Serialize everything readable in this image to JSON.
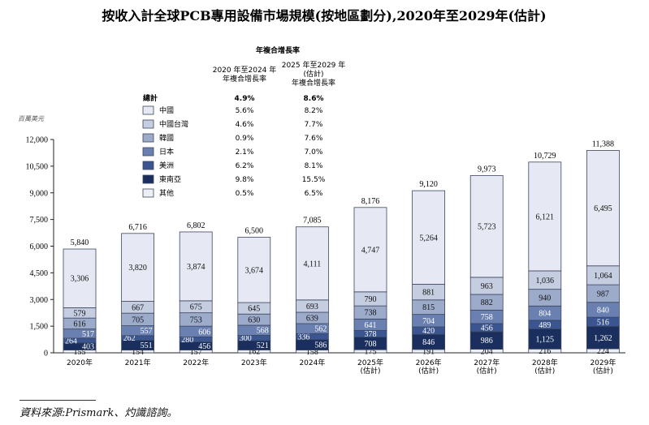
{
  "title": "按收入計全球PCB專用設備市場規模(按地區劃分),2020年至2029年(估計)",
  "unit_label": "百萬美元",
  "cagr_table": {
    "heading": "年複合增長率",
    "col1_header": [
      "2020 年至2024 年",
      "年複合增長率"
    ],
    "col2_header": [
      "2025 年至2029 年",
      "(估計)",
      "年複合增長率"
    ],
    "total_row": {
      "label": "總計",
      "cagr1": "4.9%",
      "cagr2": "8.6%"
    },
    "rows": [
      {
        "label": "中國",
        "cagr1": "5.6%",
        "cagr2": "8.2%",
        "color": "#e6e9f3"
      },
      {
        "label": "中國台灣",
        "cagr1": "4.6%",
        "cagr2": "7.7%",
        "color": "#c5cde0"
      },
      {
        "label": "韓國",
        "cagr1": "0.9%",
        "cagr2": "7.6%",
        "color": "#9dabcb"
      },
      {
        "label": "日本",
        "cagr1": "2.1%",
        "cagr2": "7.0%",
        "color": "#6a80b1"
      },
      {
        "label": "美洲",
        "cagr1": "6.2%",
        "cagr2": "8.1%",
        "color": "#3a5590"
      },
      {
        "label": "東南亞",
        "cagr1": "9.8%",
        "cagr2": "15.5%",
        "color": "#1a2f5e"
      },
      {
        "label": "其他",
        "cagr1": "0.5%",
        "cagr2": "6.5%",
        "color": "#eeeff4"
      }
    ]
  },
  "chart_data": {
    "type": "bar",
    "stacked": true,
    "title": "按收入計全球PCB專用設備市場規模(按地區劃分),2020年至2029年(估計)",
    "ylabel": "百萬美元",
    "ylim": [
      0,
      12000
    ],
    "yticks": [
      "0",
      "1,500",
      "3,000",
      "4,500",
      "6,000",
      "7,500",
      "9,000",
      "10,500",
      "12,000"
    ],
    "ytick_values": [
      0,
      1500,
      3000,
      4500,
      6000,
      7500,
      9000,
      10500,
      12000
    ],
    "categories": [
      [
        "2020年"
      ],
      [
        "2021年"
      ],
      [
        "2022年"
      ],
      [
        "2023年"
      ],
      [
        "2024年"
      ],
      [
        "2025年",
        "(估計)"
      ],
      [
        "2026年",
        "(估計)"
      ],
      [
        "2027年",
        "(估計)"
      ],
      [
        "2028年",
        "(估計)"
      ],
      [
        "2029年",
        "(估計)"
      ]
    ],
    "series_order_bottom_to_top": [
      "其他",
      "東南亞",
      "美洲",
      "日本",
      "韓國",
      "中國台灣",
      "中國"
    ],
    "series": [
      {
        "name": "其他",
        "color": "#eeeff4",
        "values": [
          155,
          154,
          157,
          162,
          158,
          175,
          191,
          204,
          216,
          224
        ],
        "labels": [
          "155",
          "154",
          "157",
          "162",
          "158",
          "175",
          "191",
          "204",
          "216",
          "224"
        ]
      },
      {
        "name": "東南亞",
        "color": "#1a2f5e",
        "values": [
          403,
          551,
          456,
          521,
          586,
          708,
          846,
          986,
          1125,
          1262
        ],
        "labels": [
          "403",
          "551",
          "456",
          "521",
          "586",
          "708",
          "846",
          "986",
          "1,125",
          "1,262"
        ]
      },
      {
        "name": "美洲",
        "color": "#3a5590",
        "values": [
          264,
          262,
          280,
          300,
          336,
          378,
          420,
          456,
          489,
          516
        ],
        "labels": [
          "264",
          "262",
          "280",
          "300",
          "336",
          "378",
          "420",
          "456",
          "489",
          "516"
        ]
      },
      {
        "name": "日本",
        "color": "#6a80b1",
        "values": [
          517,
          557,
          606,
          568,
          562,
          641,
          704,
          758,
          804,
          840
        ],
        "labels": [
          "517",
          "557",
          "606",
          "568",
          "562",
          "641",
          "704",
          "758",
          "804",
          "840"
        ]
      },
      {
        "name": "韓國",
        "color": "#9dabcb",
        "values": [
          616,
          705,
          753,
          630,
          639,
          738,
          815,
          882,
          940,
          987
        ],
        "labels": [
          "616",
          "705",
          "753",
          "630",
          "639",
          "738",
          "815",
          "882",
          "940",
          "987"
        ]
      },
      {
        "name": "中國台灣",
        "color": "#c5cde0",
        "values": [
          579,
          667,
          675,
          645,
          693,
          790,
          881,
          963,
          1036,
          1064
        ],
        "labels": [
          "579",
          "667",
          "675",
          "645",
          "693",
          "790",
          "881",
          "963",
          "1,036",
          "1,064"
        ]
      },
      {
        "name": "中國",
        "color": "#e6e9f3",
        "values": [
          3306,
          3820,
          3874,
          3674,
          4111,
          4747,
          5264,
          5723,
          6121,
          6495
        ],
        "labels": [
          "3,306",
          "3,820",
          "3,874",
          "3,674",
          "4,111",
          "4,747",
          "5,264",
          "5,723",
          "6,121",
          "6,495"
        ]
      }
    ],
    "totals": [
      5840,
      6716,
      6802,
      6500,
      7085,
      8176,
      9120,
      9973,
      10729,
      11388
    ],
    "total_labels": [
      "5,840",
      "6,716",
      "6,802",
      "6,500",
      "7,085",
      "8,176",
      "9,120",
      "9,973",
      "10,729",
      "11,388"
    ]
  },
  "source_text": "資料來源:Prismark、灼識諮詢。"
}
